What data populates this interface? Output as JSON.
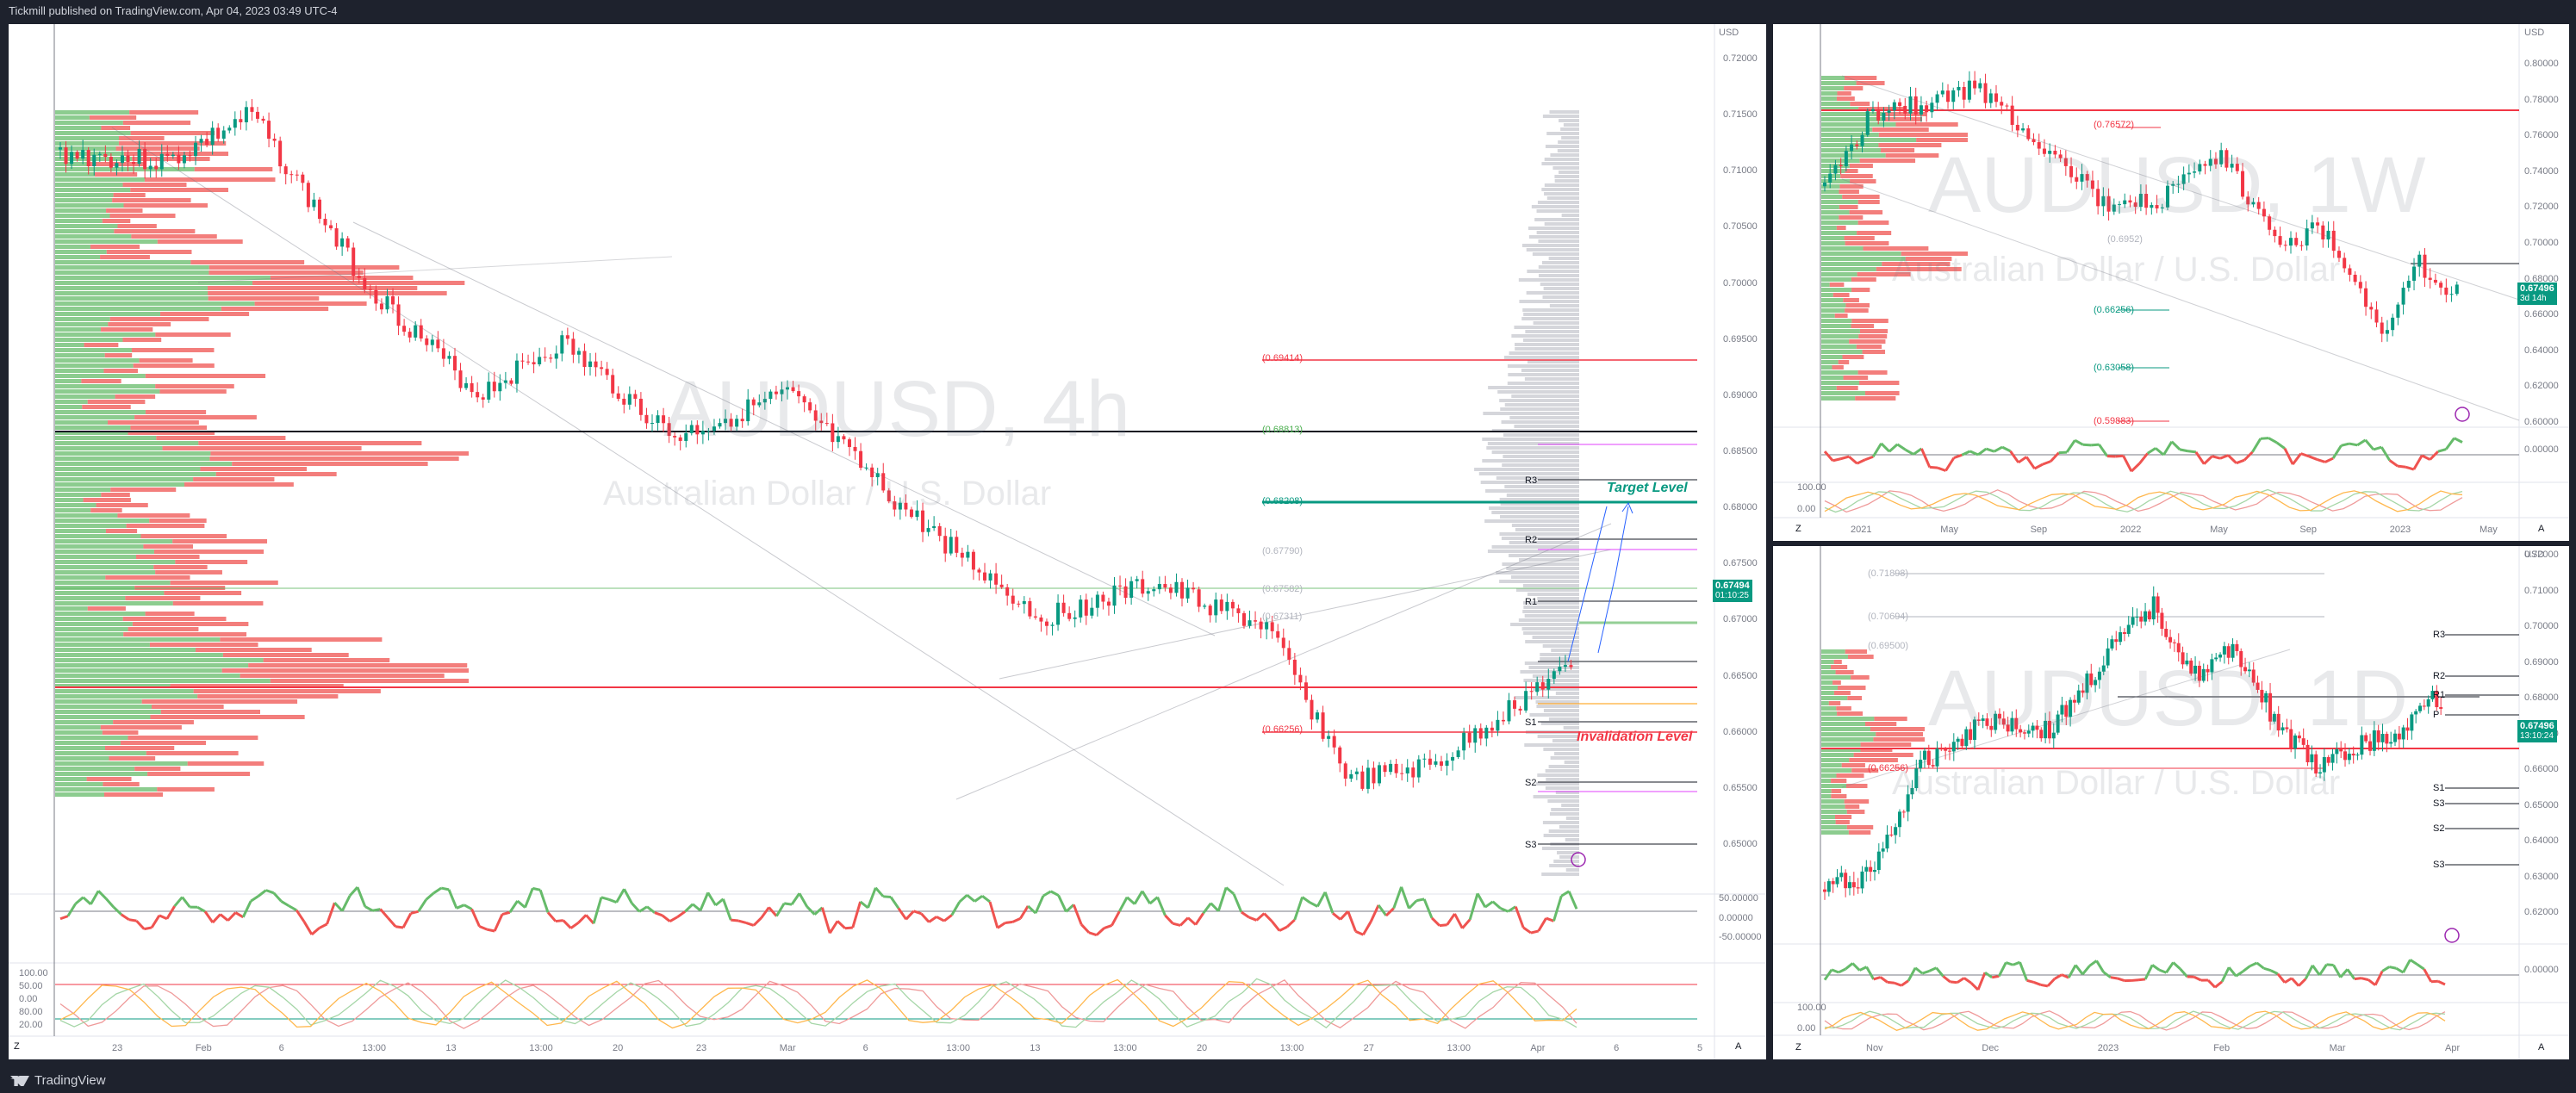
{
  "header": {
    "publish_text": "Tickmill published on TradingView.com, Apr 04, 2023 03:49 UTC-4"
  },
  "footer": {
    "logo_text": "TradingView"
  },
  "colors": {
    "bull": "#089981",
    "bear": "#f23645",
    "bg": "#ffffff",
    "frame": "#1e222d",
    "target": "#089981",
    "invalid": "#f23645"
  },
  "main": {
    "symbol": "AUDUSD, 4h",
    "description": "Australian Dollar / U.S. Dollar",
    "currency": "USD",
    "price_axis": [
      "0.72000",
      "0.71500",
      "0.71000",
      "0.70500",
      "0.70000",
      "0.69500",
      "0.69000",
      "0.68500",
      "0.68000",
      "0.67500",
      "0.67000",
      "0.66500",
      "0.66000",
      "0.65500",
      "0.65000"
    ],
    "time_axis": [
      "23",
      "Feb",
      "6",
      "13:00",
      "13",
      "13:00",
      "20",
      "23",
      "Mar",
      "6",
      "13:00",
      "13",
      "13:00",
      "20",
      "13:00",
      "27",
      "13:00",
      "Apr",
      "6",
      "5"
    ],
    "last_price": "0.67494",
    "countdown": "01:10:25",
    "levels": {
      "l1": "(0.69414)",
      "l2": "(0.68813)",
      "l3": "(0.68208)",
      "l4": "(0.67790)",
      "l5": "(0.67582)",
      "l6": "(0.67311)",
      "l7": "(0.66256)"
    },
    "pivots": {
      "r3": "R3",
      "r2": "R2",
      "r1": "R1",
      "s1": "S1",
      "s2": "S2",
      "s3": "S3"
    },
    "target_label": "Target Level",
    "invalidation_label": "Invalidation Level",
    "osc1_axis": [
      "50.00000",
      "0.00000",
      "-50.00000"
    ],
    "osc2_axis": [
      "100.00",
      "50.00",
      "0.00",
      "80.00",
      "20.00"
    ],
    "z_button": "Z",
    "a_button": "A"
  },
  "weekly": {
    "symbol": "AUDUSD, 1W",
    "description": "Australian Dollar / U.S. Dollar",
    "currency": "USD",
    "price_axis": [
      "0.80000",
      "0.78000",
      "0.76000",
      "0.74000",
      "0.72000",
      "0.70000",
      "0.68000",
      "0.66000",
      "0.64000",
      "0.62000",
      "0.60000"
    ],
    "time_axis": [
      "2021",
      "May",
      "Sep",
      "2022",
      "May",
      "Sep",
      "2023",
      "May"
    ],
    "last_price": "0.67496",
    "countdown": "3d 14h",
    "levels": {
      "l1": "(0.76572)",
      "l2": "(0.66256)",
      "l3": "(0.63058)",
      "l4": "(0.59883)",
      "l5": "(0.6952)"
    },
    "osc1_axis": [
      "0.00000"
    ],
    "osc2_axis": [
      "100.00",
      "0.00"
    ],
    "z_button": "Z",
    "a_button": "A"
  },
  "daily": {
    "symbol": "AUDUSD, 1D",
    "description": "Australian Dollar / U.S. Dollar",
    "currency": "USD",
    "price_axis": [
      "0.72000",
      "0.71000",
      "0.70000",
      "0.69000",
      "0.68000",
      "0.67000",
      "0.66000",
      "0.65000",
      "0.64000",
      "0.63000",
      "0.62000"
    ],
    "time_axis": [
      "Nov",
      "Dec",
      "2023",
      "Feb",
      "Mar",
      "Apr"
    ],
    "last_price": "0.67496",
    "countdown": "13:10:24",
    "levels": {
      "l1": "(0.71898)",
      "l2": "(0.70694)",
      "l3": "(0.69500)",
      "l4": "(0.66256)"
    },
    "pivots": {
      "r3": "R3",
      "r2": "R2",
      "r1": "R1",
      "p": "P",
      "s1": "S1",
      "s2": "S2",
      "s3": "S3",
      "s4": "S3"
    },
    "osc1_axis": [
      "0.00000"
    ],
    "osc2_axis": [
      "100.00",
      "0.00"
    ],
    "z_button": "Z",
    "a_button": "A"
  }
}
